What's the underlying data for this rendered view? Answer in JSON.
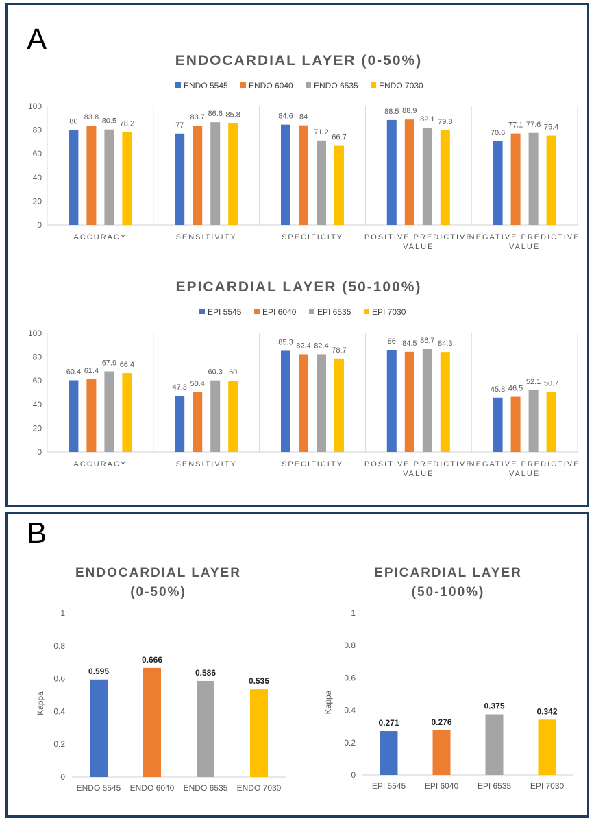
{
  "colors": {
    "s1": "#4472C4",
    "s2": "#ED7D31",
    "s3": "#A5A5A5",
    "s4": "#FFC000",
    "border": "#1f3b5e"
  },
  "panel_a": {
    "letter": "A"
  },
  "panel_b": {
    "letter": "B"
  },
  "chart_data": [
    {
      "id": "endo_metrics",
      "type": "bar",
      "title": "ENDOCARDIAL LAYER (0-50%)",
      "categories": [
        [
          "ACCURACY"
        ],
        [
          "SENSITIVITY"
        ],
        [
          "SPECIFICITY"
        ],
        [
          "POSITIVE PREDICTIVE",
          "VALUE"
        ],
        [
          "NEGATIVE PREDICTIVE",
          "VALUE"
        ]
      ],
      "series": [
        {
          "name": "ENDO 5545",
          "values": [
            80,
            77,
            84.6,
            88.5,
            70.6
          ]
        },
        {
          "name": "ENDO 6040",
          "values": [
            83.8,
            83.7,
            84,
            88.9,
            77.1
          ]
        },
        {
          "name": "ENDO 6535",
          "values": [
            80.5,
            86.6,
            71.2,
            82.1,
            77.6
          ]
        },
        {
          "name": "ENDO 7030",
          "values": [
            78.2,
            85.8,
            66.7,
            79.8,
            75.4
          ]
        }
      ],
      "ylim": [
        0,
        100
      ],
      "yticks": [
        0,
        20,
        40,
        60,
        80,
        100
      ],
      "legend": "top"
    },
    {
      "id": "epi_metrics",
      "type": "bar",
      "title": "EPICARDIAL LAYER (50-100%)",
      "categories": [
        [
          "ACCURACY"
        ],
        [
          "SENSITIVITY"
        ],
        [
          "SPECIFICITY"
        ],
        [
          "POSITIVE PREDICTIVE",
          "VALUE"
        ],
        [
          "NEGATIVE PREDICTIVE",
          "VALUE"
        ]
      ],
      "series": [
        {
          "name": "EPI 5545",
          "values": [
            60.4,
            47.3,
            85.3,
            86,
            45.8
          ]
        },
        {
          "name": "EPI 6040",
          "values": [
            61.4,
            50.4,
            82.4,
            84.5,
            46.5
          ]
        },
        {
          "name": "EPI 6535",
          "values": [
            67.9,
            60.3,
            82.4,
            86.7,
            52.1
          ]
        },
        {
          "name": "EPI 7030",
          "values": [
            66.4,
            60,
            78.7,
            84.3,
            50.7
          ]
        }
      ],
      "ylim": [
        0,
        100
      ],
      "yticks": [
        0,
        20,
        40,
        60,
        80,
        100
      ],
      "legend": "top"
    },
    {
      "id": "endo_kappa",
      "type": "bar",
      "title": [
        "ENDOCARDIAL LAYER",
        "(0-50%)"
      ],
      "ylabel": "Kappa",
      "categories": [
        "ENDO 5545",
        "ENDO 6040",
        "ENDO 6535",
        "ENDO 7030"
      ],
      "values": [
        0.595,
        0.666,
        0.586,
        0.535
      ],
      "labels": [
        "0.595",
        "0.666",
        "0.586",
        "0.535"
      ],
      "ylim": [
        0,
        1
      ],
      "yticks": [
        "0",
        "0.2",
        "0.4",
        "0.6",
        "0.8",
        "1"
      ]
    },
    {
      "id": "epi_kappa",
      "type": "bar",
      "title": [
        "EPICARDIAL LAYER",
        "(50-100%)"
      ],
      "ylabel": "Kappa",
      "categories": [
        "EPI 5545",
        "EPI 6040",
        "EPI 6535",
        "EPI 7030"
      ],
      "values": [
        0.271,
        0.276,
        0.375,
        0.342
      ],
      "labels": [
        "0.271",
        "0.276",
        "0.375",
        "0.342"
      ],
      "ylim": [
        0,
        1
      ],
      "yticks": [
        "0",
        "0.2",
        "0.4",
        "0.6",
        "0.8",
        "1"
      ]
    }
  ]
}
